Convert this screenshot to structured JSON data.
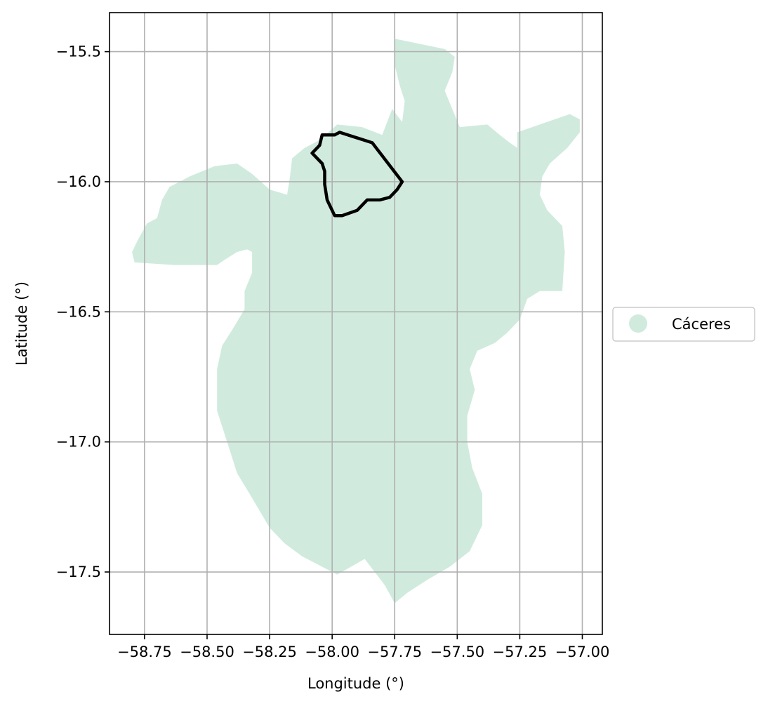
{
  "chart_data": {
    "type": "map",
    "xlabel": "Longitude (°)",
    "ylabel": "Latitude (°)",
    "xlim": [
      -58.89,
      -56.92
    ],
    "ylim": [
      -17.74,
      -15.35
    ],
    "grid": true,
    "x_ticks": [
      -58.75,
      -58.5,
      -58.25,
      -58.0,
      -57.75,
      -57.5,
      -57.25,
      -57.0
    ],
    "x_tick_labels": [
      "−58.75",
      "−58.50",
      "−58.25",
      "−58.00",
      "−57.75",
      "−57.50",
      "−57.25",
      "−57.00"
    ],
    "y_ticks": [
      -15.5,
      -16.0,
      -16.5,
      -17.0,
      -17.5
    ],
    "y_tick_labels": [
      "−15.5",
      "−16.0",
      "−16.5",
      "−17.0",
      "−17.5"
    ],
    "legend": {
      "placement": "right",
      "entries": [
        {
          "label": "Cáceres",
          "color": "#d0ebde"
        }
      ]
    },
    "region_color": "#d0ebde",
    "outline_color": "#000000",
    "region_boundary": [
      [
        -57.75,
        -15.45
      ],
      [
        -57.55,
        -15.49
      ],
      [
        -57.51,
        -15.52
      ],
      [
        -57.52,
        -15.58
      ],
      [
        -57.55,
        -15.65
      ],
      [
        -57.52,
        -15.72
      ],
      [
        -57.49,
        -15.79
      ],
      [
        -57.38,
        -15.78
      ],
      [
        -57.33,
        -15.82
      ],
      [
        -57.29,
        -15.85
      ],
      [
        -57.26,
        -15.87
      ],
      [
        -57.26,
        -15.81
      ],
      [
        -57.05,
        -15.74
      ],
      [
        -57.01,
        -15.76
      ],
      [
        -57.01,
        -15.81
      ],
      [
        -57.06,
        -15.87
      ],
      [
        -57.13,
        -15.93
      ],
      [
        -57.16,
        -15.98
      ],
      [
        -57.17,
        -16.05
      ],
      [
        -57.14,
        -16.11
      ],
      [
        -57.08,
        -16.17
      ],
      [
        -57.07,
        -16.27
      ],
      [
        -57.08,
        -16.42
      ],
      [
        -57.17,
        -16.42
      ],
      [
        -57.22,
        -16.45
      ],
      [
        -57.25,
        -16.53
      ],
      [
        -57.3,
        -16.58
      ],
      [
        -57.35,
        -16.62
      ],
      [
        -57.42,
        -16.65
      ],
      [
        -57.45,
        -16.72
      ],
      [
        -57.43,
        -16.8
      ],
      [
        -57.46,
        -16.9
      ],
      [
        -57.46,
        -17.0
      ],
      [
        -57.44,
        -17.1
      ],
      [
        -57.4,
        -17.2
      ],
      [
        -57.4,
        -17.32
      ],
      [
        -57.45,
        -17.42
      ],
      [
        -57.53,
        -17.48
      ],
      [
        -57.62,
        -17.53
      ],
      [
        -57.7,
        -17.58
      ],
      [
        -57.75,
        -17.62
      ],
      [
        -57.79,
        -17.55
      ],
      [
        -57.87,
        -17.45
      ],
      [
        -57.98,
        -17.51
      ],
      [
        -58.06,
        -17.47
      ],
      [
        -58.12,
        -17.44
      ],
      [
        -58.19,
        -17.39
      ],
      [
        -58.25,
        -17.33
      ],
      [
        -58.33,
        -17.2
      ],
      [
        -58.38,
        -17.12
      ],
      [
        -58.42,
        -17.0
      ],
      [
        -58.46,
        -16.88
      ],
      [
        -58.46,
        -16.72
      ],
      [
        -58.44,
        -16.63
      ],
      [
        -58.4,
        -16.57
      ],
      [
        -58.35,
        -16.49
      ],
      [
        -58.35,
        -16.42
      ],
      [
        -58.32,
        -16.35
      ],
      [
        -58.32,
        -16.27
      ],
      [
        -58.34,
        -16.26
      ],
      [
        -58.38,
        -16.27
      ],
      [
        -58.43,
        -16.3
      ],
      [
        -58.46,
        -16.32
      ],
      [
        -58.63,
        -16.32
      ],
      [
        -58.79,
        -16.31
      ],
      [
        -58.8,
        -16.27
      ],
      [
        -58.78,
        -16.23
      ],
      [
        -58.74,
        -16.16
      ],
      [
        -58.7,
        -16.14
      ],
      [
        -58.68,
        -16.07
      ],
      [
        -58.65,
        -16.02
      ],
      [
        -58.57,
        -15.98
      ],
      [
        -58.47,
        -15.94
      ],
      [
        -58.38,
        -15.93
      ],
      [
        -58.32,
        -15.97
      ],
      [
        -58.25,
        -16.03
      ],
      [
        -58.18,
        -16.05
      ],
      [
        -58.17,
        -15.99
      ],
      [
        -58.16,
        -15.91
      ],
      [
        -58.11,
        -15.87
      ],
      [
        -58.05,
        -15.84
      ],
      [
        -57.98,
        -15.78
      ],
      [
        -57.88,
        -15.79
      ],
      [
        -57.8,
        -15.82
      ],
      [
        -57.76,
        -15.72
      ],
      [
        -57.72,
        -15.77
      ],
      [
        -57.71,
        -15.69
      ],
      [
        -57.73,
        -15.63
      ],
      [
        -57.75,
        -15.55
      ],
      [
        -57.75,
        -15.45
      ]
    ],
    "outline_boundary": [
      [
        -58.04,
        -15.82
      ],
      [
        -57.99,
        -15.82
      ],
      [
        -57.97,
        -15.81
      ],
      [
        -57.84,
        -15.85
      ],
      [
        -57.72,
        -16.0
      ],
      [
        -57.74,
        -16.03
      ],
      [
        -57.77,
        -16.06
      ],
      [
        -57.81,
        -16.07
      ],
      [
        -57.86,
        -16.07
      ],
      [
        -57.9,
        -16.11
      ],
      [
        -57.96,
        -16.13
      ],
      [
        -57.99,
        -16.13
      ],
      [
        -58.02,
        -16.07
      ],
      [
        -58.03,
        -16.01
      ],
      [
        -58.03,
        -15.96
      ],
      [
        -58.04,
        -15.93
      ],
      [
        -58.08,
        -15.89
      ],
      [
        -58.05,
        -15.86
      ],
      [
        -58.04,
        -15.82
      ]
    ]
  }
}
